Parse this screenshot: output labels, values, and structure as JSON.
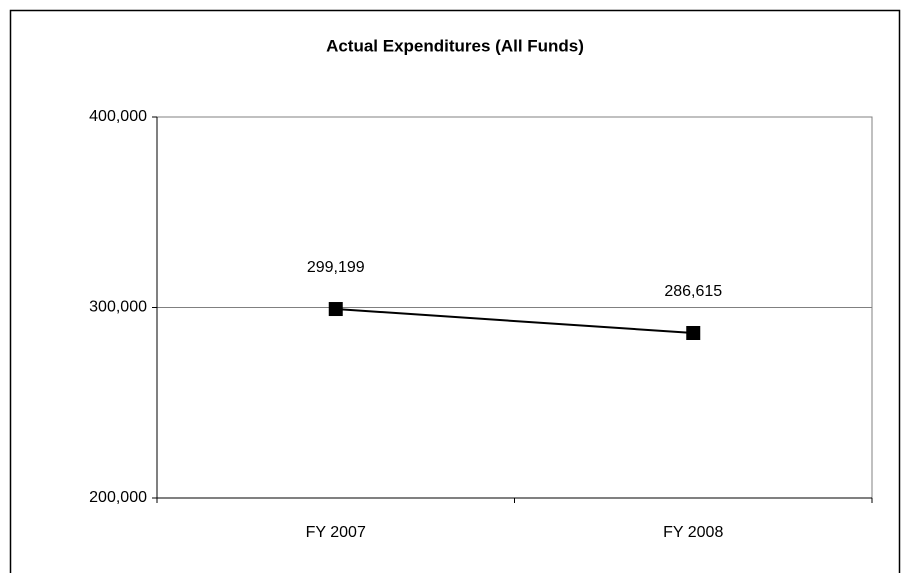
{
  "chart_data": {
    "type": "line",
    "title": "Actual Expenditures (All Funds)",
    "categories": [
      "FY 2007",
      "FY 2008"
    ],
    "values": [
      299199,
      286615
    ],
    "value_labels": [
      "299,199",
      "286,615"
    ],
    "color": "#000000",
    "ylim": [
      200000,
      400000
    ],
    "yticks": [
      {
        "value": 200000,
        "label": "200,000"
      },
      {
        "value": 300000,
        "label": "300,000"
      },
      {
        "value": 400000,
        "label": "400,000"
      }
    ],
    "grid": true
  }
}
